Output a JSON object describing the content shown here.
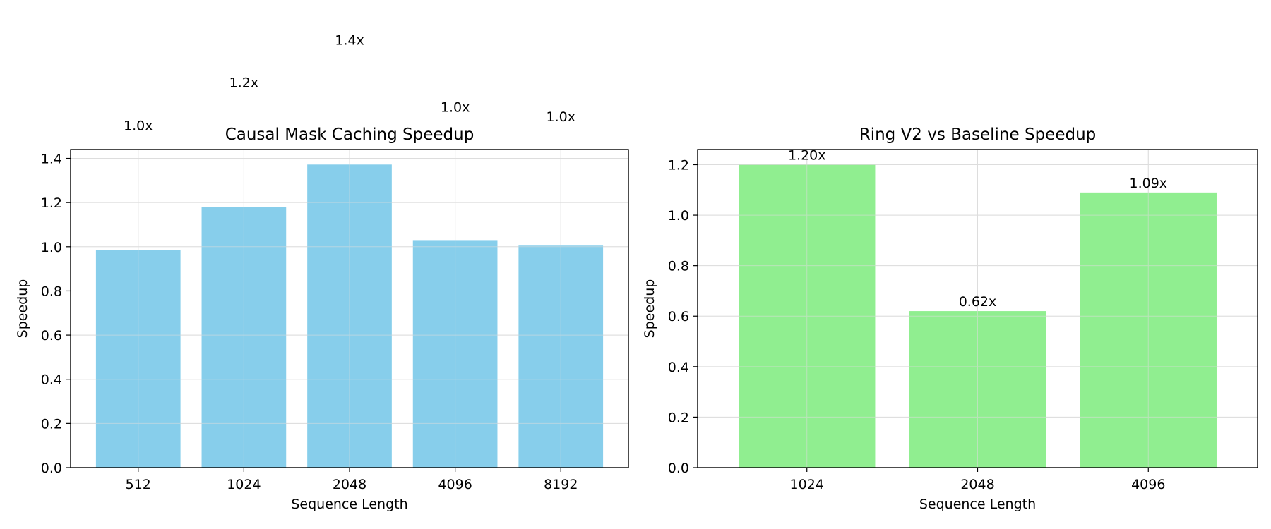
{
  "chart_data": [
    {
      "type": "bar",
      "title": "Causal Mask Caching Speedup",
      "xlabel": "Sequence Length",
      "ylabel": "Speedup",
      "categories": [
        "512",
        "1024",
        "2048",
        "4096",
        "8192"
      ],
      "values": [
        0.985,
        1.18,
        1.372,
        1.03,
        1.005
      ],
      "value_labels": [
        "1.0x",
        "1.2x",
        "1.4x",
        "1.0x",
        "1.0x"
      ],
      "ylim": [
        0,
        1.44
      ],
      "yticks": [
        0.0,
        0.2,
        0.4,
        0.6,
        0.8,
        1.0,
        1.2,
        1.4
      ],
      "grid": true,
      "color": "#87CEEB"
    },
    {
      "type": "bar",
      "title": "Ring V2 vs Baseline Speedup",
      "xlabel": "Sequence Length",
      "ylabel": "Speedup",
      "categories": [
        "1024",
        "2048",
        "4096"
      ],
      "values": [
        1.2,
        0.62,
        1.09
      ],
      "value_labels": [
        "1.20x",
        "0.62x",
        "1.09x"
      ],
      "ylim": [
        0,
        1.26
      ],
      "yticks": [
        0.0,
        0.2,
        0.4,
        0.6,
        0.8,
        1.0,
        1.2
      ],
      "grid": true,
      "color": "#90EE90"
    }
  ]
}
